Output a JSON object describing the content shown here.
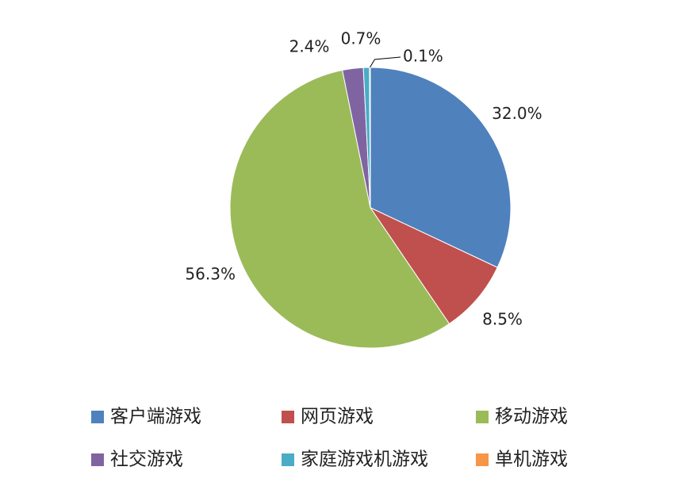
{
  "chart_data": {
    "type": "pie",
    "categories": [
      "客户端游戏",
      "网页游戏",
      "移动游戏",
      "社交游戏",
      "家庭游戏机游戏",
      "单机游戏"
    ],
    "values": [
      32.0,
      8.5,
      56.3,
      2.4,
      0.7,
      0.1
    ],
    "value_labels": [
      "32.0%",
      "8.5%",
      "56.3%",
      "2.4%",
      "0.7%",
      "0.1%"
    ],
    "colors": [
      "#4f81bd",
      "#c0504d",
      "#9bbb59",
      "#8064a2",
      "#4bacc6",
      "#f79646"
    ],
    "legend": "bottom"
  }
}
